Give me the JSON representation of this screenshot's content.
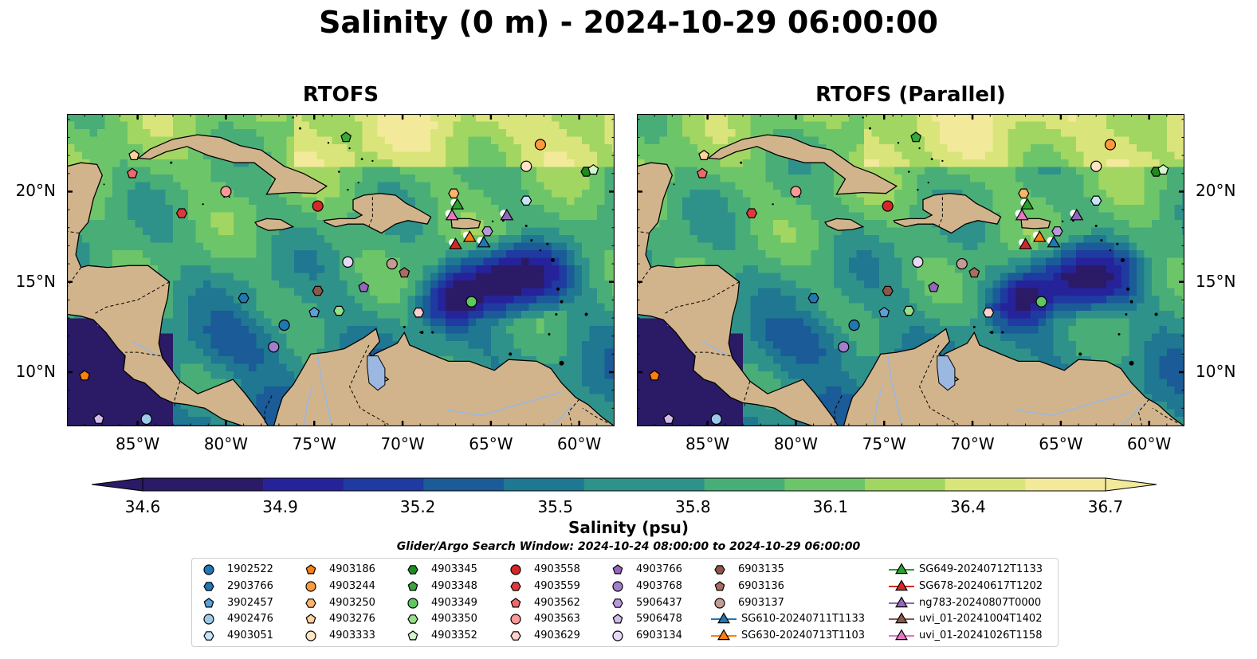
{
  "figure": {
    "title": "Salinity (0 m) - 2024-10-29 06:00:00",
    "search_window": "Glider/Argo Search Window: 2024-10-24 08:00:00 to 2024-10-29 06:00:00"
  },
  "panels": [
    {
      "title": "RTOFS",
      "variant": "control"
    },
    {
      "title": "RTOFS (Parallel)",
      "variant": "parallel"
    }
  ],
  "map": {
    "lon_range": [
      -89,
      -58
    ],
    "lat_range": [
      7,
      24.3
    ],
    "x_ticks": [
      "85°W",
      "80°W",
      "75°W",
      "70°W",
      "65°W",
      "60°W"
    ],
    "x_tick_values": [
      -85,
      -80,
      -75,
      -70,
      -65,
      -60
    ],
    "y_ticks": [
      "20°N",
      "15°N",
      "10°N"
    ],
    "y_tick_values": [
      20,
      15,
      10
    ],
    "land_color": "#d2b48c",
    "lake_color": "#9ab8e0",
    "river_color": "#9ab8e0"
  },
  "colorbar": {
    "label": "Salinity (psu)",
    "ticks": [
      "34.6",
      "34.9",
      "35.2",
      "35.5",
      "35.8",
      "36.1",
      "36.4",
      "36.7"
    ],
    "range": [
      34.6,
      36.7
    ],
    "extend": "both",
    "colormap": [
      "#2b1a66",
      "#26239a",
      "#1f3aa0",
      "#1a5b98",
      "#1f7791",
      "#2f928a",
      "#49ad78",
      "#6dc56a",
      "#a2d662",
      "#d9e57b",
      "#f2ea9a"
    ]
  },
  "legend": [
    {
      "name": "1902522",
      "marker": "circle",
      "color": "#1f77b4"
    },
    {
      "name": "2903766",
      "marker": "hexagon",
      "color": "#1f77b4"
    },
    {
      "name": "3902457",
      "marker": "pentagon",
      "color": "#5aa0d8"
    },
    {
      "name": "4902476",
      "marker": "circle",
      "color": "#9ecae9"
    },
    {
      "name": "4903051",
      "marker": "hexagon",
      "color": "#c6e3f7"
    },
    {
      "name": "4903186",
      "marker": "pentagon",
      "color": "#ff7f0e"
    },
    {
      "name": "4903244",
      "marker": "circle",
      "color": "#ff9a3c"
    },
    {
      "name": "4903250",
      "marker": "hexagon",
      "color": "#ffb26b"
    },
    {
      "name": "4903276",
      "marker": "pentagon",
      "color": "#ffd29b"
    },
    {
      "name": "4903333",
      "marker": "circle",
      "color": "#ffe4c4"
    },
    {
      "name": "4903345",
      "marker": "hexagon",
      "color": "#1f8a1f"
    },
    {
      "name": "4903348",
      "marker": "pentagon",
      "color": "#38a838"
    },
    {
      "name": "4903349",
      "marker": "circle",
      "color": "#5fc85f"
    },
    {
      "name": "4903350",
      "marker": "hexagon",
      "color": "#98df8a"
    },
    {
      "name": "4903352",
      "marker": "pentagon",
      "color": "#d4f5cc"
    },
    {
      "name": "4903558",
      "marker": "circle",
      "color": "#d62728"
    },
    {
      "name": "4903559",
      "marker": "hexagon",
      "color": "#e0393c"
    },
    {
      "name": "4903562",
      "marker": "pentagon",
      "color": "#ee6a6a"
    },
    {
      "name": "4903563",
      "marker": "circle",
      "color": "#ff9896"
    },
    {
      "name": "4903629",
      "marker": "hexagon",
      "color": "#ffd0cc"
    },
    {
      "name": "4903766",
      "marker": "pentagon",
      "color": "#9467bd"
    },
    {
      "name": "4903768",
      "marker": "circle",
      "color": "#a27fcc"
    },
    {
      "name": "5906437",
      "marker": "hexagon",
      "color": "#b799db"
    },
    {
      "name": "5906478",
      "marker": "pentagon",
      "color": "#d2bcea"
    },
    {
      "name": "6903134",
      "marker": "circle",
      "color": "#e8d8f7"
    },
    {
      "name": "6903135",
      "marker": "hexagon",
      "color": "#8c564b"
    },
    {
      "name": "6903136",
      "marker": "pentagon",
      "color": "#a86e60"
    },
    {
      "name": "6903137",
      "marker": "circle",
      "color": "#c49c94"
    },
    {
      "name": "SG610-20240711T1133",
      "marker": "triangle",
      "color": "#1f77b4"
    },
    {
      "name": "SG630-20240713T1103",
      "marker": "triangle",
      "color": "#ff7f0e"
    },
    {
      "name": "SG649-20240712T1133",
      "marker": "triangle",
      "color": "#2ca02c"
    },
    {
      "name": "SG678-20240617T1202",
      "marker": "triangle",
      "color": "#d62728"
    },
    {
      "name": "ng783-20240807T0000",
      "marker": "triangle",
      "color": "#9467bd"
    },
    {
      "name": "uvi_01-20241004T1402",
      "marker": "triangle",
      "color": "#8c564b"
    },
    {
      "name": "uvi_01-20241026T1158",
      "marker": "triangle",
      "color": "#e377c2"
    }
  ],
  "floats": [
    {
      "id": "4903186",
      "lon": -88.0,
      "lat": 9.8
    },
    {
      "id": "5906478",
      "lon": -87.2,
      "lat": 7.4
    },
    {
      "id": "4902476",
      "lon": -84.5,
      "lat": 7.4
    },
    {
      "id": "4903276",
      "lon": -85.2,
      "lat": 22.0
    },
    {
      "id": "4903562",
      "lon": -85.3,
      "lat": 21.0
    },
    {
      "id": "4903559",
      "lon": -82.5,
      "lat": 18.8
    },
    {
      "id": "4903563",
      "lon": -80.0,
      "lat": 20.0
    },
    {
      "id": "2903766",
      "lon": -79.0,
      "lat": 14.1
    },
    {
      "id": "1902522",
      "lon": -76.7,
      "lat": 12.6
    },
    {
      "id": "4903768",
      "lon": -77.3,
      "lat": 11.4
    },
    {
      "id": "3902457",
      "lon": -75.0,
      "lat": 13.3
    },
    {
      "id": "4903350",
      "lon": -73.6,
      "lat": 13.4
    },
    {
      "id": "6903135",
      "lon": -74.8,
      "lat": 14.5
    },
    {
      "id": "4903558",
      "lon": -74.8,
      "lat": 19.2
    },
    {
      "id": "6903134",
      "lon": -73.1,
      "lat": 16.1
    },
    {
      "id": "4903766",
      "lon": -72.2,
      "lat": 14.7
    },
    {
      "id": "6903137",
      "lon": -70.6,
      "lat": 16.0
    },
    {
      "id": "6903136",
      "lon": -69.9,
      "lat": 15.5
    },
    {
      "id": "4903629",
      "lon": -69.1,
      "lat": 13.3
    },
    {
      "id": "4903349",
      "lon": -66.1,
      "lat": 13.9
    },
    {
      "id": "4903348",
      "lon": -73.2,
      "lat": 23.0
    },
    {
      "id": "4903333",
      "lon": -63.0,
      "lat": 21.4
    },
    {
      "id": "4903244",
      "lon": -62.2,
      "lat": 22.6
    },
    {
      "id": "4903051",
      "lon": -63.0,
      "lat": 19.5
    },
    {
      "id": "4903345",
      "lon": -59.6,
      "lat": 21.1
    },
    {
      "id": "4903352",
      "lon": -59.2,
      "lat": 21.2
    },
    {
      "id": "4903250",
      "lon": -67.1,
      "lat": 19.9
    },
    {
      "id": "5906437",
      "lon": -65.2,
      "lat": 17.8
    }
  ],
  "gliders": [
    {
      "id": "SG649-20240712T1133",
      "lon": -66.9,
      "lat": 19.3
    },
    {
      "id": "uvi_01-20241026T1158",
      "lon": -67.2,
      "lat": 18.7
    },
    {
      "id": "SG630-20240713T1103",
      "lon": -66.2,
      "lat": 17.5
    },
    {
      "id": "SG678-20240617T1202",
      "lon": -67.0,
      "lat": 17.1
    },
    {
      "id": "SG610-20240711T1133",
      "lon": -65.4,
      "lat": 17.2
    },
    {
      "id": "ng783-20240807T0000",
      "lon": -64.1,
      "lat": 18.7
    }
  ]
}
